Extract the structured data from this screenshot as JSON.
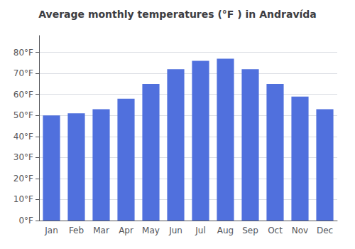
{
  "chart_data": {
    "type": "bar",
    "title": "Average monthly temperatures (°F ) in Andravída",
    "categories": [
      "Jan",
      "Feb",
      "Mar",
      "Apr",
      "May",
      "Jun",
      "Jul",
      "Aug",
      "Sep",
      "Oct",
      "Nov",
      "Dec"
    ],
    "values": [
      50,
      51,
      53,
      58,
      65,
      72,
      76,
      77,
      72,
      65,
      59,
      53
    ],
    "ylim": [
      0,
      88
    ],
    "yticks": [
      {
        "value": 0,
        "label": "0°F"
      },
      {
        "value": 10,
        "label": "10°F"
      },
      {
        "value": 20,
        "label": "20°F"
      },
      {
        "value": 30,
        "label": "30°F"
      },
      {
        "value": 40,
        "label": "40°F"
      },
      {
        "value": 50,
        "label": "50°F"
      },
      {
        "value": 60,
        "label": "60°F"
      },
      {
        "value": 70,
        "label": "70°F"
      },
      {
        "value": 80,
        "label": "80°F"
      }
    ],
    "grid": true
  }
}
